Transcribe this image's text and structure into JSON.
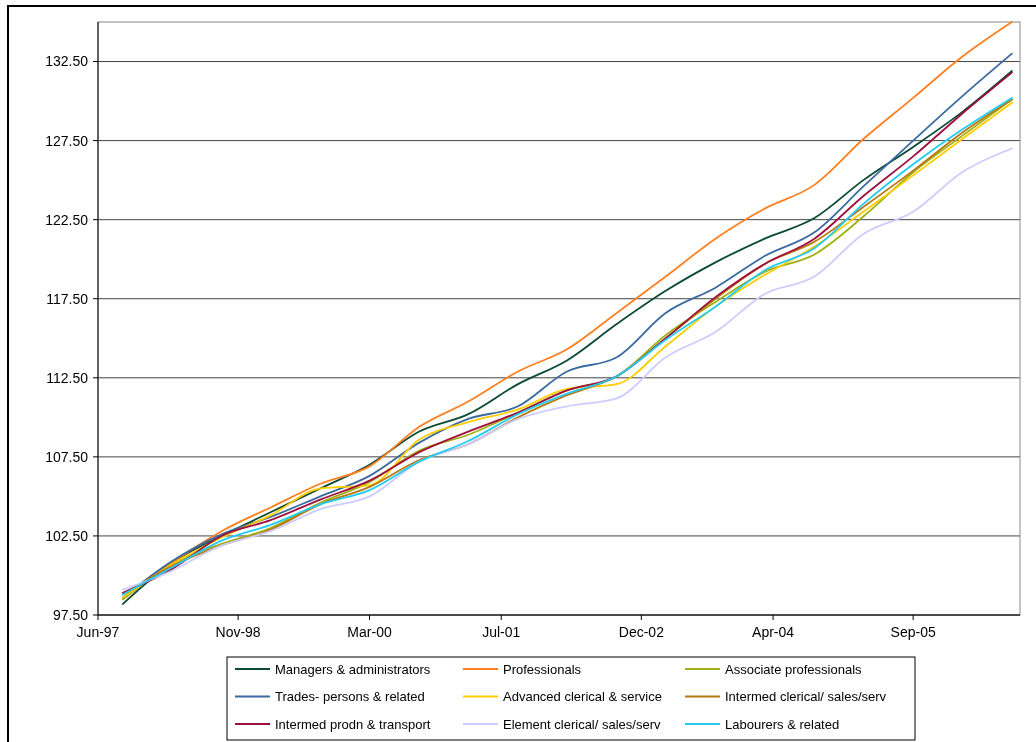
{
  "chart_data": {
    "type": "line",
    "x": [
      "1997-09",
      "1998-03",
      "1998-09",
      "1999-03",
      "1999-09",
      "2000-03",
      "2000-09",
      "2001-03",
      "2001-09",
      "2002-03",
      "2002-09",
      "2003-03",
      "2003-09",
      "2004-03",
      "2004-09",
      "2005-03",
      "2005-09",
      "2006-03",
      "2006-09"
    ],
    "xlim": [
      "1997-06",
      "2006-10"
    ],
    "xticks": [
      {
        "value": "1997-06",
        "label": "Jun-97"
      },
      {
        "value": "1998-11",
        "label": "Nov-98"
      },
      {
        "value": "2000-03",
        "label": "Mar-00"
      },
      {
        "value": "2001-07",
        "label": "Jul-01"
      },
      {
        "value": "2002-12",
        "label": "Dec-02"
      },
      {
        "value": "2004-04",
        "label": "Apr-04"
      },
      {
        "value": "2005-09",
        "label": "Sep-05"
      }
    ],
    "ylim": [
      97.5,
      135
    ],
    "yticks": [
      {
        "value": 97.5,
        "label": "97.50"
      },
      {
        "value": 102.5,
        "label": "102.50"
      },
      {
        "value": 107.5,
        "label": "107.50"
      },
      {
        "value": 112.5,
        "label": "112.50"
      },
      {
        "value": 117.5,
        "label": "117.50"
      },
      {
        "value": 122.5,
        "label": "122.50"
      },
      {
        "value": 127.5,
        "label": "127.50"
      },
      {
        "value": 132.5,
        "label": "132.50"
      }
    ],
    "grid": "y",
    "legend": "bottom",
    "marker": "none",
    "line_style": "solid",
    "series": [
      {
        "name": "Managers & administrators",
        "color": "#0b4a33",
        "values": [
          98.2,
          100.8,
          102.5,
          104.0,
          105.5,
          107.0,
          109.1,
          110.2,
          112.1,
          113.6,
          115.9,
          118.0,
          119.8,
          121.3,
          122.6,
          125.0,
          127.1,
          129.3,
          131.9
        ]
      },
      {
        "name": "Professionals",
        "color": "#ff8020",
        "values": [
          98.5,
          100.8,
          102.8,
          104.3,
          105.8,
          106.9,
          109.4,
          111.0,
          112.9,
          114.3,
          116.6,
          118.9,
          121.3,
          123.2,
          124.7,
          127.6,
          130.2,
          132.8,
          135.0
        ]
      },
      {
        "name": "Associate professionals",
        "color": "#a0b010",
        "values": [
          98.5,
          100.7,
          102.0,
          103.0,
          104.6,
          105.9,
          107.9,
          108.9,
          110.3,
          111.7,
          112.6,
          115.2,
          117.3,
          119.2,
          120.3,
          122.7,
          125.5,
          127.8,
          130.1
        ]
      },
      {
        "name": "Trades- persons & related",
        "color": "#3a6aa0",
        "values": [
          98.6,
          100.9,
          102.6,
          103.7,
          105.0,
          106.3,
          108.4,
          109.9,
          110.7,
          112.9,
          113.8,
          116.6,
          118.2,
          120.2,
          121.7,
          124.6,
          127.5,
          130.3,
          133.0
        ]
      },
      {
        "name": "Advanced clerical & service",
        "color": "#ffcc00",
        "values": [
          98.6,
          100.7,
          102.4,
          103.8,
          105.5,
          105.7,
          108.6,
          109.7,
          110.5,
          111.8,
          112.1,
          114.5,
          117.0,
          119.0,
          120.8,
          123.0,
          125.3,
          127.6,
          129.9
        ]
      },
      {
        "name": "Intermed clerical/ sales/serv",
        "color": "#b8780f",
        "values": [
          98.8,
          100.6,
          101.9,
          102.9,
          104.5,
          105.6,
          107.3,
          108.3,
          110.0,
          111.4,
          112.6,
          115.0,
          117.5,
          119.7,
          121.1,
          123.3,
          125.6,
          128.0,
          130.1
        ]
      },
      {
        "name": "Intermed prodn & transport",
        "color": "#a0103f",
        "values": [
          98.9,
          100.4,
          102.5,
          103.5,
          104.8,
          106.0,
          107.8,
          109.1,
          110.3,
          111.7,
          112.6,
          115.0,
          117.6,
          119.7,
          121.3,
          124.0,
          126.5,
          129.2,
          131.8
        ]
      },
      {
        "name": "Element clerical/ sales/serv",
        "color": "#ccccff",
        "values": [
          99.1,
          100.3,
          101.9,
          102.8,
          104.2,
          105.0,
          107.2,
          108.3,
          109.9,
          110.7,
          111.2,
          113.8,
          115.4,
          117.8,
          118.9,
          121.6,
          123.0,
          125.5,
          127.0
        ]
      },
      {
        "name": "Labourers & related",
        "color": "#22ccf5",
        "values": [
          98.8,
          100.5,
          102.2,
          103.2,
          104.5,
          105.4,
          107.2,
          108.5,
          110.2,
          111.5,
          112.6,
          114.9,
          117.0,
          119.3,
          120.7,
          123.5,
          126.0,
          128.2,
          130.2
        ]
      }
    ]
  }
}
